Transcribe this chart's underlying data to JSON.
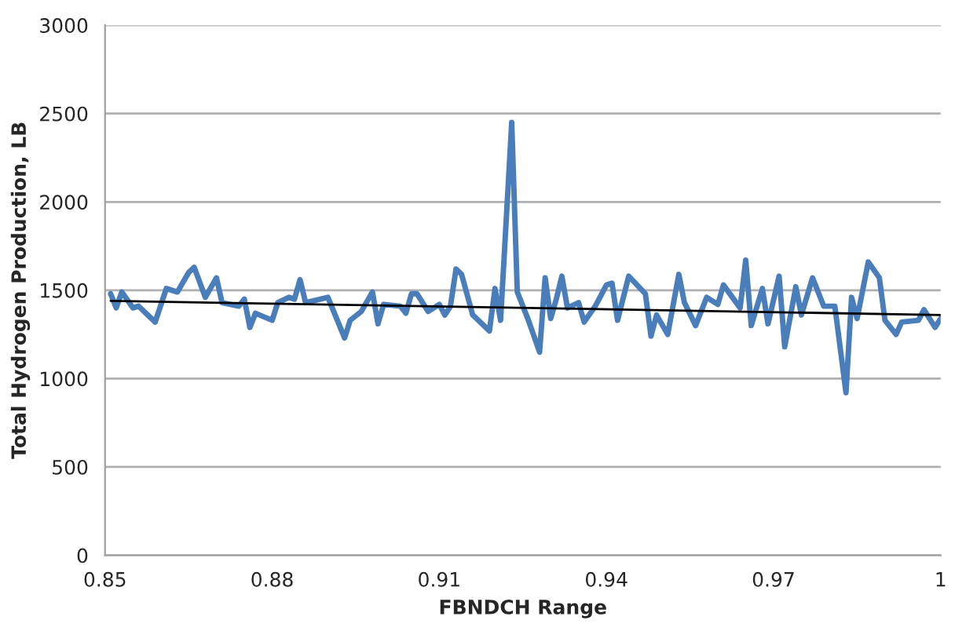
{
  "chart_data": {
    "type": "line",
    "xlabel": "FBNDCH Range",
    "ylabel": "Total Hydrogen Production, LB",
    "xlim": [
      0.85,
      1
    ],
    "xticks": [
      0.85,
      0.88,
      0.91,
      0.94,
      0.97,
      {
        "value": 1,
        "label": "1"
      }
    ],
    "ylim": [
      0,
      3000
    ],
    "yticks": [
      0,
      500,
      1000,
      1500,
      2000,
      2500,
      3000
    ],
    "grid": "y",
    "marker": "none",
    "line_style": "solid",
    "series": [
      {
        "color": "#4a7ebb",
        "x": [
          0.851,
          0.852,
          0.853,
          0.855,
          0.856,
          0.859,
          0.861,
          0.863,
          0.865,
          0.866,
          0.868,
          0.87,
          0.871,
          0.874,
          0.875,
          0.876,
          0.877,
          0.88,
          0.881,
          0.883,
          0.884,
          0.885,
          0.886,
          0.89,
          0.893,
          0.894,
          0.896,
          0.898,
          0.899,
          0.9,
          0.903,
          0.904,
          0.905,
          0.906,
          0.908,
          0.91,
          0.911,
          0.912,
          0.913,
          0.914,
          0.916,
          0.919,
          0.92,
          0.921,
          0.923,
          0.924,
          0.926,
          0.928,
          0.929,
          0.93,
          0.931,
          0.932,
          0.933,
          0.935,
          0.936,
          0.938,
          0.94,
          0.941,
          0.942,
          0.944,
          0.947,
          0.948,
          0.949,
          0.951,
          0.953,
          0.954,
          0.956,
          0.958,
          0.96,
          0.961,
          0.964,
          0.965,
          0.966,
          0.968,
          0.969,
          0.971,
          0.972,
          0.974,
          0.975,
          0.977,
          0.979,
          0.981,
          0.983,
          0.984,
          0.985,
          0.987,
          0.989,
          0.99,
          0.992,
          0.993,
          0.996,
          0.997,
          0.999,
          1.0
        ],
        "values": [
          1480,
          1400,
          1490,
          1400,
          1410,
          1320,
          1510,
          1490,
          1600,
          1630,
          1460,
          1570,
          1430,
          1410,
          1450,
          1290,
          1370,
          1330,
          1430,
          1460,
          1450,
          1560,
          1430,
          1460,
          1230,
          1330,
          1380,
          1490,
          1310,
          1420,
          1410,
          1370,
          1480,
          1480,
          1380,
          1420,
          1360,
          1410,
          1620,
          1590,
          1360,
          1270,
          1510,
          1330,
          2450,
          1490,
          1330,
          1150,
          1570,
          1340,
          1450,
          1580,
          1400,
          1430,
          1320,
          1410,
          1530,
          1540,
          1330,
          1580,
          1480,
          1240,
          1360,
          1250,
          1590,
          1430,
          1300,
          1460,
          1420,
          1530,
          1400,
          1670,
          1300,
          1510,
          1310,
          1580,
          1180,
          1520,
          1360,
          1570,
          1410,
          1410,
          920,
          1460,
          1340,
          1660,
          1570,
          1330,
          1250,
          1320,
          1330,
          1390,
          1290,
          1340
        ]
      },
      {
        "color": "#000000",
        "x": [
          0.851,
          1.0
        ],
        "values": [
          1440,
          1360
        ]
      }
    ]
  }
}
